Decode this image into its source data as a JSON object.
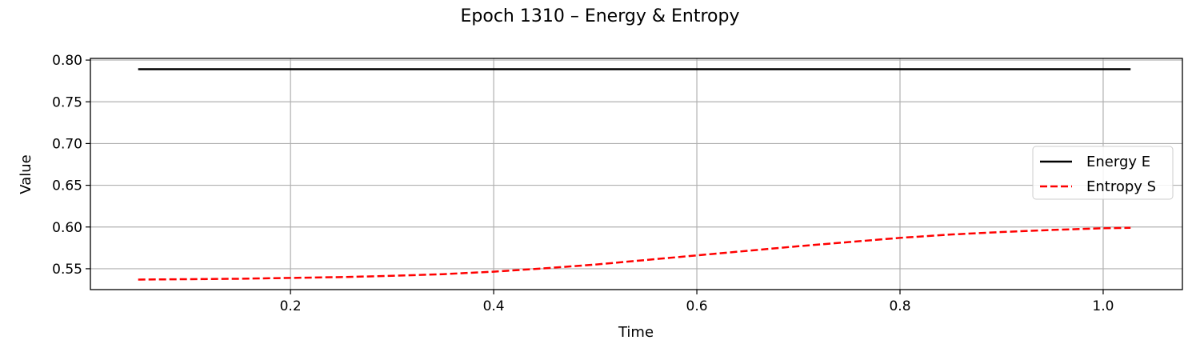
{
  "chart_data": {
    "type": "line",
    "title": "Epoch 1310 – Energy & Entropy",
    "xlabel": "Time",
    "ylabel": "Value",
    "xlim": [
      0.003,
      1.078
    ],
    "ylim": [
      0.525,
      0.802
    ],
    "xticks": [
      0.2,
      0.4,
      0.6,
      0.8,
      1.0
    ],
    "xtick_labels": [
      "0.2",
      "0.4",
      "0.6",
      "0.8",
      "1.0"
    ],
    "yticks": [
      0.55,
      0.6,
      0.65,
      0.7,
      0.75,
      0.8
    ],
    "ytick_labels": [
      "0.55",
      "0.60",
      "0.65",
      "0.70",
      "0.75",
      "0.80"
    ],
    "grid": true,
    "legend_position": "center-right",
    "series": [
      {
        "name": "Energy E",
        "color": "#000000",
        "style": "solid",
        "x": [
          0.05,
          0.15,
          0.25,
          0.35,
          0.45,
          0.55,
          0.65,
          0.75,
          0.85,
          0.95,
          1.027
        ],
        "y": [
          0.789,
          0.789,
          0.789,
          0.789,
          0.789,
          0.789,
          0.789,
          0.789,
          0.789,
          0.789,
          0.789
        ]
      },
      {
        "name": "Entropy S",
        "color": "#ff0000",
        "style": "dashed",
        "x": [
          0.05,
          0.1,
          0.15,
          0.2,
          0.25,
          0.3,
          0.35,
          0.4,
          0.45,
          0.5,
          0.55,
          0.6,
          0.65,
          0.7,
          0.75,
          0.8,
          0.85,
          0.9,
          0.95,
          1.0,
          1.027
        ],
        "y": [
          0.537,
          0.5375,
          0.538,
          0.539,
          0.54,
          0.5415,
          0.5435,
          0.5465,
          0.5505,
          0.555,
          0.5605,
          0.566,
          0.5715,
          0.577,
          0.582,
          0.587,
          0.591,
          0.594,
          0.5965,
          0.5985,
          0.599
        ]
      }
    ]
  }
}
